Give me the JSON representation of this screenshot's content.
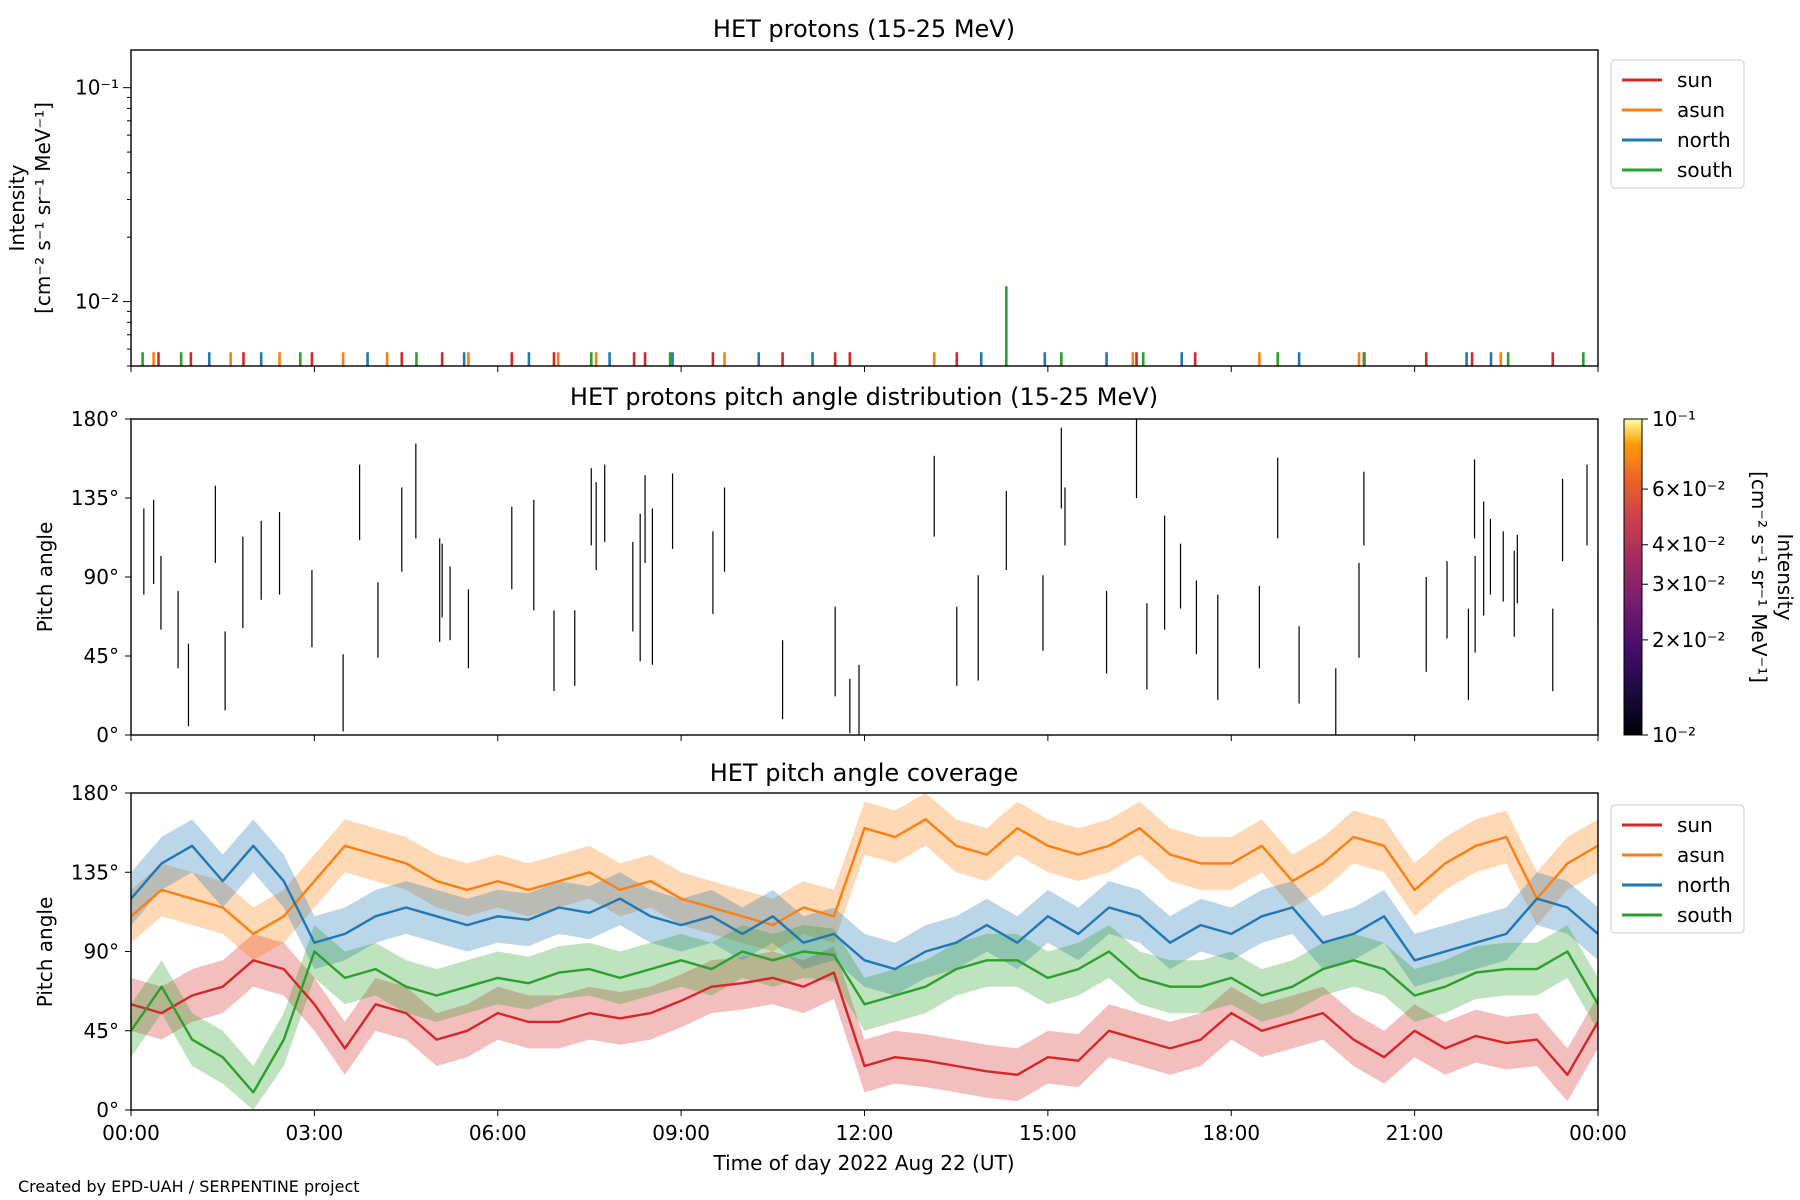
{
  "footer": {
    "credit": "Created by EPD-UAH / SERPENTINE project"
  },
  "colors": {
    "sun": "#d62728",
    "asun": "#ff7f0e",
    "north": "#1f77b4",
    "south": "#2ca02c"
  },
  "chart_data": [
    {
      "type": "line",
      "title": "HET protons (15-25 MeV)",
      "ylabel_lines": [
        "Intensity",
        "[cm⁻² s⁻¹ sr⁻¹ MeV⁻¹]"
      ],
      "yscale": "log",
      "ylim": [
        0.005,
        0.15
      ],
      "yticks": [
        {
          "v": 0.01,
          "label": "10⁻²"
        },
        {
          "v": 0.1,
          "label": "10⁻¹"
        }
      ],
      "xlim_hours": [
        0,
        24
      ],
      "legend_position": "outside-right",
      "series": [
        {
          "name": "sun",
          "color": "#d62728",
          "spikes": [
            [
              0.45,
              0.0058
            ],
            [
              0.98,
              0.0058
            ],
            [
              1.84,
              0.0058
            ],
            [
              2.96,
              0.0058
            ],
            [
              4.43,
              0.0058
            ],
            [
              5.09,
              0.0058
            ],
            [
              6.23,
              0.0058
            ],
            [
              6.92,
              0.0058
            ],
            [
              8.23,
              0.0058
            ],
            [
              8.41,
              0.0058
            ],
            [
              9.52,
              0.0058
            ],
            [
              10.66,
              0.0058
            ],
            [
              11.52,
              0.0058
            ],
            [
              11.76,
              0.0058
            ],
            [
              13.51,
              0.0058
            ],
            [
              16.45,
              0.0058
            ],
            [
              17.41,
              0.0058
            ],
            [
              20.17,
              0.0058
            ],
            [
              21.19,
              0.0058
            ],
            [
              21.94,
              0.0058
            ],
            [
              23.26,
              0.0058
            ]
          ]
        },
        {
          "name": "asun",
          "color": "#ff7f0e",
          "spikes": [
            [
              0.37,
              0.0058
            ],
            [
              1.63,
              0.0058
            ],
            [
              2.43,
              0.0058
            ],
            [
              3.47,
              0.0058
            ],
            [
              4.19,
              0.0058
            ],
            [
              5.52,
              0.0058
            ],
            [
              6.99,
              0.0058
            ],
            [
              7.61,
              0.0058
            ],
            [
              9.71,
              0.0058
            ],
            [
              13.14,
              0.0058
            ],
            [
              16.39,
              0.0058
            ],
            [
              18.46,
              0.0058
            ],
            [
              20.09,
              0.0058
            ],
            [
              22.41,
              0.0058
            ]
          ]
        },
        {
          "name": "north",
          "color": "#1f77b4",
          "spikes": [
            [
              1.28,
              0.0058
            ],
            [
              2.13,
              0.0058
            ],
            [
              3.87,
              0.0058
            ],
            [
              5.45,
              0.0058
            ],
            [
              6.51,
              0.0058
            ],
            [
              7.83,
              0.0058
            ],
            [
              8.86,
              0.0058
            ],
            [
              10.27,
              0.0058
            ],
            [
              11.15,
              0.0058
            ],
            [
              13.91,
              0.0058
            ],
            [
              14.95,
              0.0058
            ],
            [
              15.96,
              0.0058
            ],
            [
              17.19,
              0.0058
            ],
            [
              19.11,
              0.0058
            ],
            [
              21.85,
              0.0058
            ],
            [
              22.25,
              0.0058
            ]
          ]
        },
        {
          "name": "south",
          "color": "#2ca02c",
          "spikes": [
            [
              0.19,
              0.0058
            ],
            [
              0.82,
              0.0058
            ],
            [
              2.77,
              0.0058
            ],
            [
              4.67,
              0.0058
            ],
            [
              7.53,
              0.0058
            ],
            [
              8.82,
              0.0058
            ],
            [
              14.32,
              0.0118
            ],
            [
              15.22,
              0.0058
            ],
            [
              16.56,
              0.0058
            ],
            [
              18.76,
              0.0058
            ],
            [
              20.18,
              0.0058
            ],
            [
              22.53,
              0.0058
            ],
            [
              23.76,
              0.0058
            ]
          ]
        }
      ]
    },
    {
      "type": "heatmap",
      "title": "HET protons pitch angle distribution (15-25 MeV)",
      "ylabel": "Pitch angle",
      "ylim": [
        0,
        180
      ],
      "yticks": [
        "0°",
        "45°",
        "90°",
        "135°",
        "180°"
      ],
      "xlim_hours": [
        0,
        24
      ],
      "colorbar": {
        "label_lines": [
          "Intensity",
          "[cm⁻² s⁻¹ sr⁻¹ MeV⁻¹]"
        ],
        "scale": "log",
        "range": [
          0.01,
          0.1
        ],
        "colormap": "inferno",
        "ticks": [
          {
            "v": 0.1,
            "label": "10⁻¹"
          },
          {
            "v": 0.06,
            "label": "6×10⁻²"
          },
          {
            "v": 0.04,
            "label": "4×10⁻²"
          },
          {
            "v": 0.03,
            "label": "3×10⁻²"
          },
          {
            "v": 0.02,
            "label": "2×10⁻²"
          },
          {
            "v": 0.01,
            "label": "10⁻²"
          }
        ]
      },
      "segments": [
        [
          0.21,
          80,
          129
        ],
        [
          0.37,
          86,
          134
        ],
        [
          0.49,
          60,
          102
        ],
        [
          0.77,
          38,
          82
        ],
        [
          0.94,
          5,
          52
        ],
        [
          1.38,
          98,
          142
        ],
        [
          1.54,
          14,
          59
        ],
        [
          1.83,
          61,
          113
        ],
        [
          2.13,
          77,
          122
        ],
        [
          2.43,
          80,
          127
        ],
        [
          2.96,
          50,
          94
        ],
        [
          3.47,
          2,
          46
        ],
        [
          3.74,
          111,
          154
        ],
        [
          4.04,
          44,
          87
        ],
        [
          4.43,
          93,
          141
        ],
        [
          4.66,
          112,
          166
        ],
        [
          5.05,
          53,
          112
        ],
        [
          5.09,
          67,
          109
        ],
        [
          5.22,
          54,
          96
        ],
        [
          5.52,
          38,
          83
        ],
        [
          6.23,
          83,
          130
        ],
        [
          6.59,
          71,
          134
        ],
        [
          6.92,
          25,
          71
        ],
        [
          7.26,
          28,
          71
        ],
        [
          7.53,
          108,
          152
        ],
        [
          7.61,
          94,
          144
        ],
        [
          7.75,
          110,
          154
        ],
        [
          8.21,
          59,
          110
        ],
        [
          8.33,
          42,
          126
        ],
        [
          8.41,
          98,
          148
        ],
        [
          8.53,
          40,
          129
        ],
        [
          8.86,
          106,
          149
        ],
        [
          9.52,
          69,
          116
        ],
        [
          9.71,
          93,
          141
        ],
        [
          10.66,
          9,
          54
        ],
        [
          11.52,
          22,
          73
        ],
        [
          11.76,
          1,
          32
        ],
        [
          11.91,
          0,
          40
        ],
        [
          13.14,
          113,
          159
        ],
        [
          13.51,
          28,
          73
        ],
        [
          13.86,
          31,
          91
        ],
        [
          14.32,
          94,
          139
        ],
        [
          14.92,
          48,
          91
        ],
        [
          15.22,
          129,
          175
        ],
        [
          15.28,
          108,
          141
        ],
        [
          15.96,
          35,
          82
        ],
        [
          16.45,
          135,
          180
        ],
        [
          16.62,
          26,
          75
        ],
        [
          16.91,
          60,
          125
        ],
        [
          17.17,
          72,
          109
        ],
        [
          17.43,
          46,
          88
        ],
        [
          17.78,
          20,
          80
        ],
        [
          18.46,
          38,
          85
        ],
        [
          18.76,
          112,
          158
        ],
        [
          19.11,
          18,
          62
        ],
        [
          19.71,
          0,
          38
        ],
        [
          20.09,
          44,
          98
        ],
        [
          20.17,
          108,
          150
        ],
        [
          21.19,
          36,
          90
        ],
        [
          21.53,
          55,
          99
        ],
        [
          21.88,
          20,
          72
        ],
        [
          21.99,
          47,
          102
        ],
        [
          21.98,
          112,
          157
        ],
        [
          22.13,
          68,
          133
        ],
        [
          22.24,
          80,
          123
        ],
        [
          22.45,
          76,
          116
        ],
        [
          22.63,
          56,
          105
        ],
        [
          22.68,
          75,
          114
        ],
        [
          23.26,
          25,
          72
        ],
        [
          23.42,
          99,
          146
        ],
        [
          23.82,
          108,
          154
        ],
        [
          24.0,
          62,
          104
        ]
      ]
    },
    {
      "type": "line",
      "title": "HET pitch angle coverage",
      "ylabel": "Pitch angle",
      "xlabel": "Time of day 2022 Aug 22 (UT)",
      "ylim": [
        0,
        180
      ],
      "yticks": [
        "0°",
        "45°",
        "90°",
        "135°",
        "180°"
      ],
      "xticks": [
        "00:00",
        "03:00",
        "06:00",
        "09:00",
        "12:00",
        "15:00",
        "18:00",
        "21:00",
        "00:00"
      ],
      "xlim_hours": [
        0,
        24
      ],
      "legend_position": "outside-right",
      "band_halfwidth_deg": 15,
      "series": [
        {
          "name": "sun",
          "color": "#d62728",
          "x": [
            0,
            0.5,
            1,
            1.5,
            2,
            2.5,
            3,
            3.5,
            4,
            4.5,
            5,
            5.5,
            6,
            6.5,
            7,
            7.5,
            8,
            8.5,
            9,
            9.5,
            10,
            10.5,
            11,
            11.5,
            12,
            12.5,
            13,
            13.5,
            14,
            14.5,
            15,
            15.5,
            16,
            16.5,
            17,
            17.5,
            18,
            18.5,
            19,
            19.5,
            20,
            20.5,
            21,
            21.5,
            22,
            22.5,
            23,
            23.5,
            24
          ],
          "y": [
            60,
            55,
            65,
            70,
            85,
            80,
            60,
            35,
            60,
            55,
            40,
            45,
            55,
            50,
            50,
            55,
            52,
            55,
            62,
            70,
            72,
            75,
            70,
            78,
            25,
            30,
            28,
            25,
            22,
            20,
            30,
            28,
            45,
            40,
            35,
            40,
            55,
            45,
            50,
            55,
            40,
            30,
            45,
            35,
            42,
            38,
            40,
            20,
            50
          ]
        },
        {
          "name": "asun",
          "color": "#ff7f0e",
          "x": [
            0,
            0.5,
            1,
            1.5,
            2,
            2.5,
            3,
            3.5,
            4,
            4.5,
            5,
            5.5,
            6,
            6.5,
            7,
            7.5,
            8,
            8.5,
            9,
            9.5,
            10,
            10.5,
            11,
            11.5,
            12,
            12.5,
            13,
            13.5,
            14,
            14.5,
            15,
            15.5,
            16,
            16.5,
            17,
            17.5,
            18,
            18.5,
            19,
            19.5,
            20,
            20.5,
            21,
            21.5,
            22,
            22.5,
            23,
            23.5,
            24
          ],
          "y": [
            110,
            125,
            120,
            115,
            100,
            110,
            130,
            150,
            145,
            140,
            130,
            125,
            130,
            125,
            130,
            135,
            125,
            130,
            120,
            115,
            110,
            105,
            115,
            110,
            160,
            155,
            165,
            150,
            145,
            160,
            150,
            145,
            150,
            160,
            145,
            140,
            140,
            150,
            130,
            140,
            155,
            150,
            125,
            140,
            150,
            155,
            120,
            140,
            150
          ]
        },
        {
          "name": "north",
          "color": "#1f77b4",
          "x": [
            0,
            0.5,
            1,
            1.5,
            2,
            2.5,
            3,
            3.5,
            4,
            4.5,
            5,
            5.5,
            6,
            6.5,
            7,
            7.5,
            8,
            8.5,
            9,
            9.5,
            10,
            10.5,
            11,
            11.5,
            12,
            12.5,
            13,
            13.5,
            14,
            14.5,
            15,
            15.5,
            16,
            16.5,
            17,
            17.5,
            18,
            18.5,
            19,
            19.5,
            20,
            20.5,
            21,
            21.5,
            22,
            22.5,
            23,
            23.5,
            24
          ],
          "y": [
            120,
            140,
            150,
            130,
            150,
            130,
            95,
            100,
            110,
            115,
            110,
            105,
            110,
            108,
            115,
            112,
            120,
            110,
            105,
            110,
            100,
            110,
            95,
            100,
            85,
            80,
            90,
            95,
            105,
            95,
            110,
            100,
            115,
            110,
            95,
            105,
            100,
            110,
            115,
            95,
            100,
            110,
            85,
            90,
            95,
            100,
            120,
            115,
            100
          ]
        },
        {
          "name": "south",
          "color": "#2ca02c",
          "x": [
            0,
            0.5,
            1,
            1.5,
            2,
            2.5,
            3,
            3.5,
            4,
            4.5,
            5,
            5.5,
            6,
            6.5,
            7,
            7.5,
            8,
            8.5,
            9,
            9.5,
            10,
            10.5,
            11,
            11.5,
            12,
            12.5,
            13,
            13.5,
            14,
            14.5,
            15,
            15.5,
            16,
            16.5,
            17,
            17.5,
            18,
            18.5,
            19,
            19.5,
            20,
            20.5,
            21,
            21.5,
            22,
            22.5,
            23,
            23.5,
            24
          ],
          "y": [
            45,
            70,
            40,
            30,
            10,
            40,
            90,
            75,
            80,
            70,
            65,
            70,
            75,
            72,
            78,
            80,
            75,
            80,
            85,
            80,
            90,
            85,
            90,
            88,
            60,
            65,
            70,
            80,
            85,
            85,
            75,
            80,
            90,
            75,
            70,
            70,
            75,
            65,
            70,
            80,
            85,
            80,
            65,
            70,
            78,
            80,
            80,
            90,
            60
          ]
        }
      ]
    }
  ]
}
